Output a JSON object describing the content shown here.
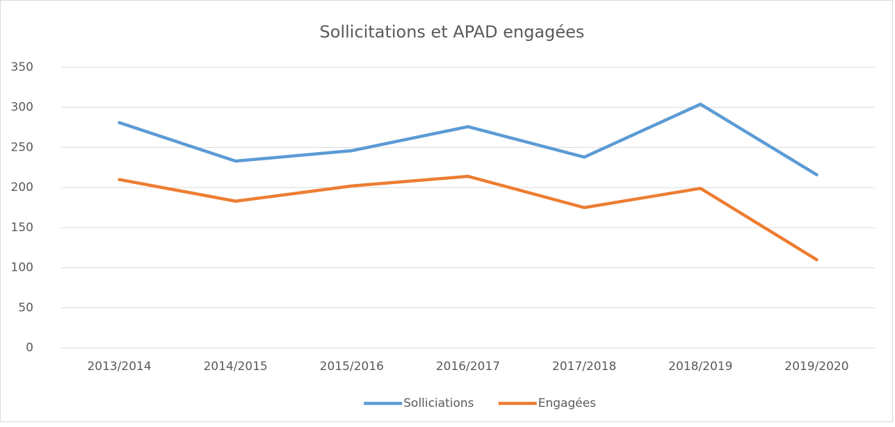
{
  "chart_data": {
    "type": "line",
    "title": "Sollicitations et APAD engagées",
    "categories": [
      "2013/2014",
      "2014/2015",
      "2015/2016",
      "2016/2017",
      "2017/2018",
      "2018/2019",
      "2019/2020"
    ],
    "series": [
      {
        "name": "Solliciations",
        "color": "#5b9bd5",
        "values": [
          281,
          233,
          246,
          276,
          238,
          304,
          216
        ]
      },
      {
        "name": "Engagées",
        "color": "#ed7d31",
        "values": [
          210,
          183,
          202,
          214,
          175,
          199,
          110
        ]
      }
    ],
    "ylim": [
      0,
      350
    ],
    "yticks": [
      0,
      50,
      100,
      150,
      200,
      250,
      300,
      350
    ],
    "grid": true,
    "legend": "bottom"
  }
}
